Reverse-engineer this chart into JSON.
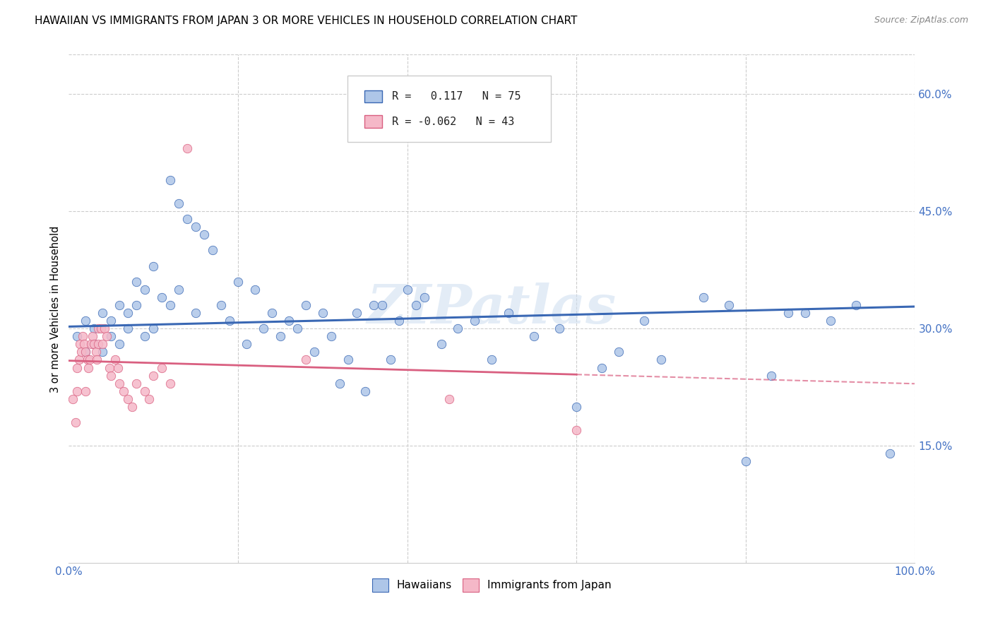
{
  "title": "HAWAIIAN VS IMMIGRANTS FROM JAPAN 3 OR MORE VEHICLES IN HOUSEHOLD CORRELATION CHART",
  "source": "Source: ZipAtlas.com",
  "ylabel": "3 or more Vehicles in Household",
  "xlim": [
    0,
    1.0
  ],
  "ylim": [
    0,
    0.65
  ],
  "xticks": [
    0.0,
    0.2,
    0.4,
    0.6,
    0.8,
    1.0
  ],
  "xticklabels": [
    "0.0%",
    "",
    "",
    "",
    "",
    "100.0%"
  ],
  "yticks": [
    0.15,
    0.3,
    0.45,
    0.6
  ],
  "yticklabels": [
    "15.0%",
    "30.0%",
    "45.0%",
    "60.0%"
  ],
  "legend_label1": "Hawaiians",
  "legend_label2": "Immigrants from Japan",
  "r1": 0.117,
  "n1": 75,
  "r2": -0.062,
  "n2": 43,
  "color1": "#aec6e8",
  "color2": "#f5b8c8",
  "line_color1": "#3a68b4",
  "line_color2": "#d95f80",
  "watermark": "ZIPatlas",
  "hawaiians_x": [
    0.01,
    0.02,
    0.02,
    0.03,
    0.03,
    0.04,
    0.04,
    0.05,
    0.05,
    0.06,
    0.06,
    0.07,
    0.07,
    0.08,
    0.08,
    0.09,
    0.09,
    0.1,
    0.1,
    0.11,
    0.12,
    0.12,
    0.13,
    0.13,
    0.14,
    0.15,
    0.15,
    0.16,
    0.17,
    0.18,
    0.19,
    0.2,
    0.21,
    0.22,
    0.23,
    0.24,
    0.25,
    0.26,
    0.27,
    0.28,
    0.29,
    0.3,
    0.31,
    0.32,
    0.33,
    0.34,
    0.35,
    0.36,
    0.37,
    0.38,
    0.39,
    0.4,
    0.41,
    0.42,
    0.44,
    0.46,
    0.48,
    0.5,
    0.52,
    0.55,
    0.58,
    0.6,
    0.63,
    0.65,
    0.68,
    0.7,
    0.75,
    0.78,
    0.8,
    0.83,
    0.85,
    0.87,
    0.9,
    0.93,
    0.97
  ],
  "hawaiians_y": [
    0.29,
    0.27,
    0.31,
    0.28,
    0.3,
    0.32,
    0.27,
    0.31,
    0.29,
    0.33,
    0.28,
    0.32,
    0.3,
    0.36,
    0.33,
    0.35,
    0.29,
    0.38,
    0.3,
    0.34,
    0.49,
    0.33,
    0.46,
    0.35,
    0.44,
    0.43,
    0.32,
    0.42,
    0.4,
    0.33,
    0.31,
    0.36,
    0.28,
    0.35,
    0.3,
    0.32,
    0.29,
    0.31,
    0.3,
    0.33,
    0.27,
    0.32,
    0.29,
    0.23,
    0.26,
    0.32,
    0.22,
    0.33,
    0.33,
    0.26,
    0.31,
    0.35,
    0.33,
    0.34,
    0.28,
    0.3,
    0.31,
    0.26,
    0.32,
    0.29,
    0.3,
    0.2,
    0.25,
    0.27,
    0.31,
    0.26,
    0.34,
    0.33,
    0.13,
    0.24,
    0.32,
    0.32,
    0.31,
    0.33,
    0.14
  ],
  "japan_x": [
    0.005,
    0.008,
    0.01,
    0.01,
    0.012,
    0.013,
    0.015,
    0.016,
    0.018,
    0.02,
    0.02,
    0.022,
    0.023,
    0.025,
    0.026,
    0.028,
    0.03,
    0.032,
    0.033,
    0.035,
    0.035,
    0.038,
    0.04,
    0.042,
    0.045,
    0.048,
    0.05,
    0.055,
    0.058,
    0.06,
    0.065,
    0.07,
    0.075,
    0.08,
    0.09,
    0.095,
    0.1,
    0.11,
    0.12,
    0.14,
    0.28,
    0.45,
    0.6
  ],
  "japan_y": [
    0.21,
    0.18,
    0.22,
    0.25,
    0.26,
    0.28,
    0.27,
    0.29,
    0.28,
    0.27,
    0.22,
    0.26,
    0.25,
    0.26,
    0.28,
    0.29,
    0.28,
    0.27,
    0.26,
    0.28,
    0.3,
    0.3,
    0.28,
    0.3,
    0.29,
    0.25,
    0.24,
    0.26,
    0.25,
    0.23,
    0.22,
    0.21,
    0.2,
    0.23,
    0.22,
    0.21,
    0.24,
    0.25,
    0.23,
    0.53,
    0.26,
    0.21,
    0.17
  ]
}
